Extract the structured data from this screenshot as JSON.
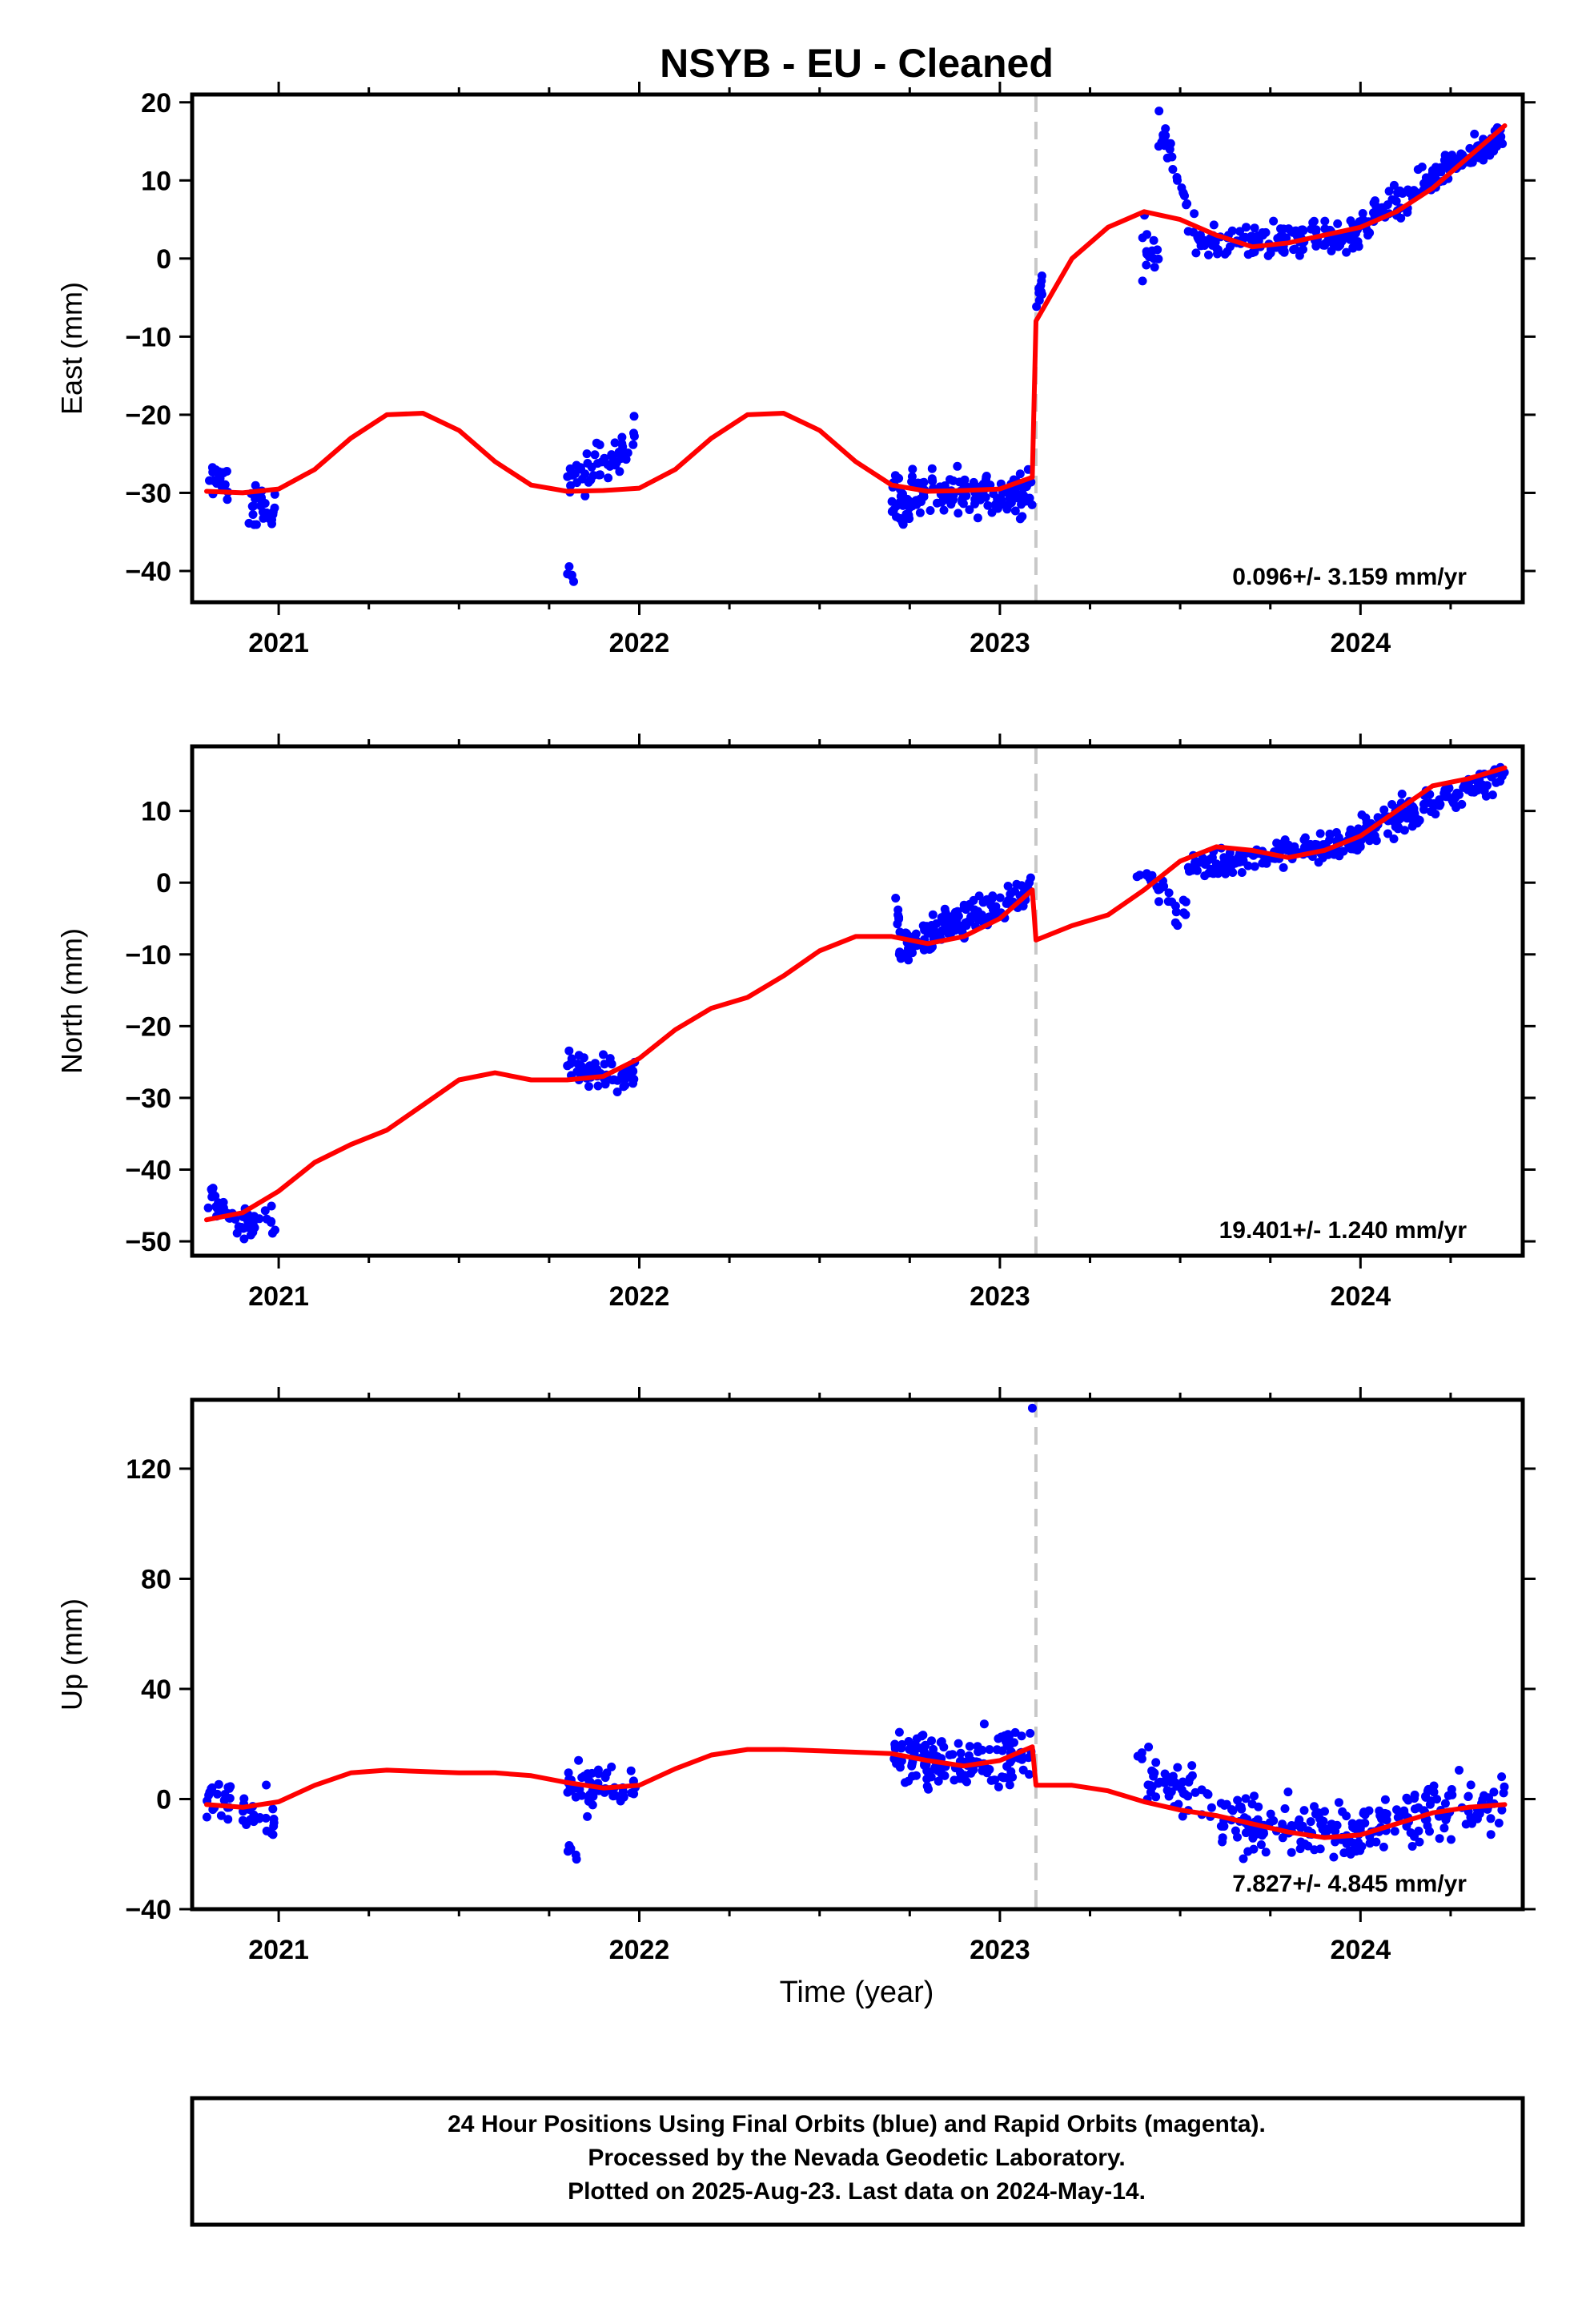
{
  "title": "NSYB  - EU - Cleaned",
  "xlabel": "Time (year)",
  "footer": [
    "24 Hour Positions Using Final Orbits (blue) and Rapid Orbits (magenta).",
    "Processed by the Nevada Geodetic Laboratory.",
    "Plotted on 2025-Aug-23. Last data on 2024-May-14."
  ],
  "colors": {
    "data": "#0000ff",
    "model": "#ff0000",
    "break": "#c8c8c8"
  },
  "chart_data": [
    {
      "type": "scatter",
      "name": "east",
      "ylabel": "East (mm)",
      "rate": "0.096+/- 3.159 mm/yr",
      "xlim": [
        2020.76,
        2024.45
      ],
      "ylim": [
        -44,
        21
      ],
      "xticks": [
        2021,
        2022,
        2023,
        2024
      ],
      "yticks": [
        -40,
        -30,
        -20,
        -10,
        0,
        10,
        20
      ],
      "break_x": 2023.1,
      "segments": [
        [
          2020.8,
          2020.99
        ],
        [
          2021.8,
          2021.99
        ],
        [
          2022.7,
          2023.09
        ],
        [
          2023.1,
          2023.25
        ],
        [
          2023.39,
          2024.4
        ]
      ],
      "model": {
        "x": [
          2020.8,
          2020.9,
          2021.0,
          2021.1,
          2021.2,
          2021.3,
          2021.4,
          2021.5,
          2021.6,
          2021.7,
          2021.8,
          2021.9,
          2022.0,
          2022.1,
          2022.2,
          2022.3,
          2022.4,
          2022.5,
          2022.6,
          2022.7,
          2022.8,
          2022.9,
          2023.0,
          2023.09,
          2023.1,
          2023.15,
          2023.2,
          2023.3,
          2023.4,
          2023.5,
          2023.6,
          2023.7,
          2023.8,
          2023.9,
          2024.0,
          2024.1,
          2024.2,
          2024.3,
          2024.4
        ],
        "y": [
          -29.8,
          -30,
          -29.5,
          -27,
          -23,
          -20,
          -19.8,
          -22,
          -26,
          -29,
          -29.8,
          -29.7,
          -29.4,
          -27,
          -23,
          -20,
          -19.8,
          -22,
          -26,
          -29,
          -29.8,
          -29.7,
          -29.5,
          -28,
          -8,
          -4,
          0,
          4,
          6,
          5,
          3,
          1.5,
          2,
          3,
          4,
          6,
          9,
          13,
          17
        ],
        "line_breaks": [
          23
        ]
      },
      "clusters": [
        {
          "x": [
            2020.8,
            2020.87
          ],
          "center": [
            -28,
            -29
          ],
          "noise": 1.5,
          "n": 22
        },
        {
          "x": [
            2020.91,
            2020.99
          ],
          "center": [
            -32,
            -32
          ],
          "noise": 1.6,
          "n": 25
        },
        {
          "x": [
            2021.8,
            2021.99
          ],
          "center": [
            -29,
            -23
          ],
          "noise": 1.6,
          "n": 55
        },
        {
          "x": [
            2021.8,
            2021.83
          ],
          "center": [
            -40,
            -42
          ],
          "noise": 0.8,
          "n": 5
        },
        {
          "x": [
            2022.7,
            2023.09
          ],
          "center": [
            -30,
            -30
          ],
          "noise": 1.8,
          "n": 150
        },
        {
          "x": [
            2022.72,
            2022.75
          ],
          "center": [
            -34,
            -32
          ],
          "noise": 1.2,
          "n": 12
        },
        {
          "x": [
            2023.1,
            2023.12
          ],
          "center": [
            -6,
            -3
          ],
          "noise": 1.3,
          "n": 10
        },
        {
          "x": [
            2023.38,
            2023.44
          ],
          "center": [
            1,
            0
          ],
          "noise": 2.3,
          "n": 14
        },
        {
          "x": [
            2023.44,
            2023.55
          ],
          "center": [
            17,
            3
          ],
          "noise": 1.5,
          "n": 30
        },
        {
          "x": [
            2023.55,
            2024.0
          ],
          "center": [
            2,
            3
          ],
          "noise": 1.3,
          "n": 150
        },
        {
          "x": [
            2024.0,
            2024.4
          ],
          "center": [
            4,
            16
          ],
          "noise": 1.3,
          "n": 140
        }
      ]
    },
    {
      "type": "scatter",
      "name": "north",
      "ylabel": "North (mm)",
      "rate": "19.401+/- 1.240 mm/yr",
      "xlim": [
        2020.76,
        2024.45
      ],
      "ylim": [
        -52,
        19
      ],
      "xticks": [
        2021,
        2022,
        2023,
        2024
      ],
      "yticks": [
        -50,
        -40,
        -30,
        -20,
        -10,
        0,
        10
      ],
      "break_x": 2023.1,
      "segments": [
        [
          2020.8,
          2020.99
        ],
        [
          2021.8,
          2021.99
        ],
        [
          2022.7,
          2023.09
        ],
        [
          2023.38,
          2024.4
        ]
      ],
      "model": {
        "x": [
          2020.8,
          2020.9,
          2021.0,
          2021.1,
          2021.2,
          2021.3,
          2021.4,
          2021.5,
          2021.6,
          2021.7,
          2021.8,
          2021.9,
          2022.0,
          2022.1,
          2022.2,
          2022.3,
          2022.4,
          2022.5,
          2022.6,
          2022.7,
          2022.8,
          2022.9,
          2023.0,
          2023.09,
          2023.1,
          2023.2,
          2023.3,
          2023.4,
          2023.5,
          2023.6,
          2023.7,
          2023.8,
          2023.9,
          2024.0,
          2024.1,
          2024.2,
          2024.3,
          2024.4
        ],
        "y": [
          -47,
          -46,
          -43,
          -39,
          -36.5,
          -34.5,
          -31,
          -27.5,
          -26.5,
          -27.5,
          -27.5,
          -27,
          -24.5,
          -20.5,
          -17.5,
          -16,
          -13,
          -9.5,
          -7.5,
          -7.5,
          -8.5,
          -7.5,
          -5,
          -1,
          -8,
          -6,
          -4.5,
          -1,
          3,
          5,
          4.5,
          3.5,
          4.5,
          6.5,
          10,
          13.5,
          14.5,
          16
        ],
        "line_breaks": [
          24
        ]
      },
      "clusters": [
        {
          "x": [
            2020.8,
            2020.88
          ],
          "center": [
            -44,
            -46
          ],
          "noise": 1.2,
          "n": 22
        },
        {
          "x": [
            2020.88,
            2020.99
          ],
          "center": [
            -48,
            -47
          ],
          "noise": 1.3,
          "n": 25
        },
        {
          "x": [
            2021.8,
            2021.99
          ],
          "center": [
            -26,
            -27
          ],
          "noise": 1.3,
          "n": 60
        },
        {
          "x": [
            2022.7,
            2022.72
          ],
          "center": [
            -2,
            -5
          ],
          "noise": 1.2,
          "n": 6
        },
        {
          "x": [
            2022.72,
            2023.09
          ],
          "center": [
            -9,
            -1
          ],
          "noise": 1.4,
          "n": 140
        },
        {
          "x": [
            2023.38,
            2023.48
          ],
          "center": [
            1,
            -1
          ],
          "noise": 1.5,
          "n": 18
        },
        {
          "x": [
            2023.48,
            2023.52
          ],
          "center": [
            -5,
            -3
          ],
          "noise": 1.2,
          "n": 8
        },
        {
          "x": [
            2023.52,
            2024.0
          ],
          "center": [
            2,
            6
          ],
          "noise": 1.3,
          "n": 150
        },
        {
          "x": [
            2024.0,
            2024.4
          ],
          "center": [
            7,
            15
          ],
          "noise": 1.3,
          "n": 140
        }
      ]
    },
    {
      "type": "scatter",
      "name": "up",
      "ylabel": "Up (mm)",
      "rate": "7.827+/- 4.845 mm/yr",
      "xlim": [
        2020.76,
        2024.45
      ],
      "ylim": [
        -40,
        145
      ],
      "xticks": [
        2021,
        2022,
        2023,
        2024
      ],
      "yticks": [
        -40,
        0,
        40,
        80,
        120
      ],
      "break_x": 2023.1,
      "segments": [
        [
          2020.8,
          2020.99
        ],
        [
          2021.8,
          2021.99
        ],
        [
          2022.7,
          2023.09
        ],
        [
          2023.38,
          2024.4
        ]
      ],
      "model": {
        "x": [
          2020.8,
          2020.9,
          2021.0,
          2021.1,
          2021.2,
          2021.3,
          2021.4,
          2021.5,
          2021.6,
          2021.7,
          2021.8,
          2021.9,
          2022.0,
          2022.1,
          2022.2,
          2022.3,
          2022.4,
          2022.5,
          2022.6,
          2022.7,
          2022.8,
          2022.9,
          2023.0,
          2023.09,
          2023.1,
          2023.2,
          2023.3,
          2023.4,
          2023.5,
          2023.6,
          2023.7,
          2023.8,
          2023.9,
          2024.0,
          2024.1,
          2024.2,
          2024.3,
          2024.4
        ],
        "y": [
          -2,
          -3,
          -1,
          5,
          9.5,
          10.5,
          10,
          9.5,
          9.5,
          8.5,
          6,
          4,
          5,
          11,
          16,
          18,
          18,
          17.5,
          17,
          16.5,
          14,
          12,
          14,
          19,
          5,
          5,
          3,
          -1,
          -4,
          -6,
          -9,
          -12,
          -14,
          -13,
          -9,
          -5,
          -3,
          -2
        ],
        "line_breaks": [
          24
        ]
      },
      "clusters": [
        {
          "x": [
            2020.8,
            2020.87
          ],
          "center": [
            3,
            1
          ],
          "noise": 5,
          "n": 22
        },
        {
          "x": [
            2020.9,
            2020.99
          ],
          "center": [
            -6,
            -6
          ],
          "noise": 5,
          "n": 22
        },
        {
          "x": [
            2021.8,
            2021.99
          ],
          "center": [
            4,
            3
          ],
          "noise": 5,
          "n": 55
        },
        {
          "x": [
            2021.8,
            2021.83
          ],
          "center": [
            -18,
            -22
          ],
          "noise": 3,
          "n": 5
        },
        {
          "x": [
            2022.7,
            2023.09
          ],
          "center": [
            15,
            16
          ],
          "noise": 6,
          "n": 150
        },
        {
          "x": [
            2023.38,
            2023.6
          ],
          "center": [
            10,
            -3
          ],
          "noise": 7,
          "n": 50
        },
        {
          "x": [
            2023.6,
            2024.0
          ],
          "center": [
            -8,
            -14
          ],
          "noise": 6,
          "n": 120
        },
        {
          "x": [
            2024.0,
            2024.4
          ],
          "center": [
            -10,
            0
          ],
          "noise": 6,
          "n": 110
        }
      ],
      "outliers": [
        {
          "x": 2023.09,
          "y": 142
        }
      ]
    }
  ]
}
